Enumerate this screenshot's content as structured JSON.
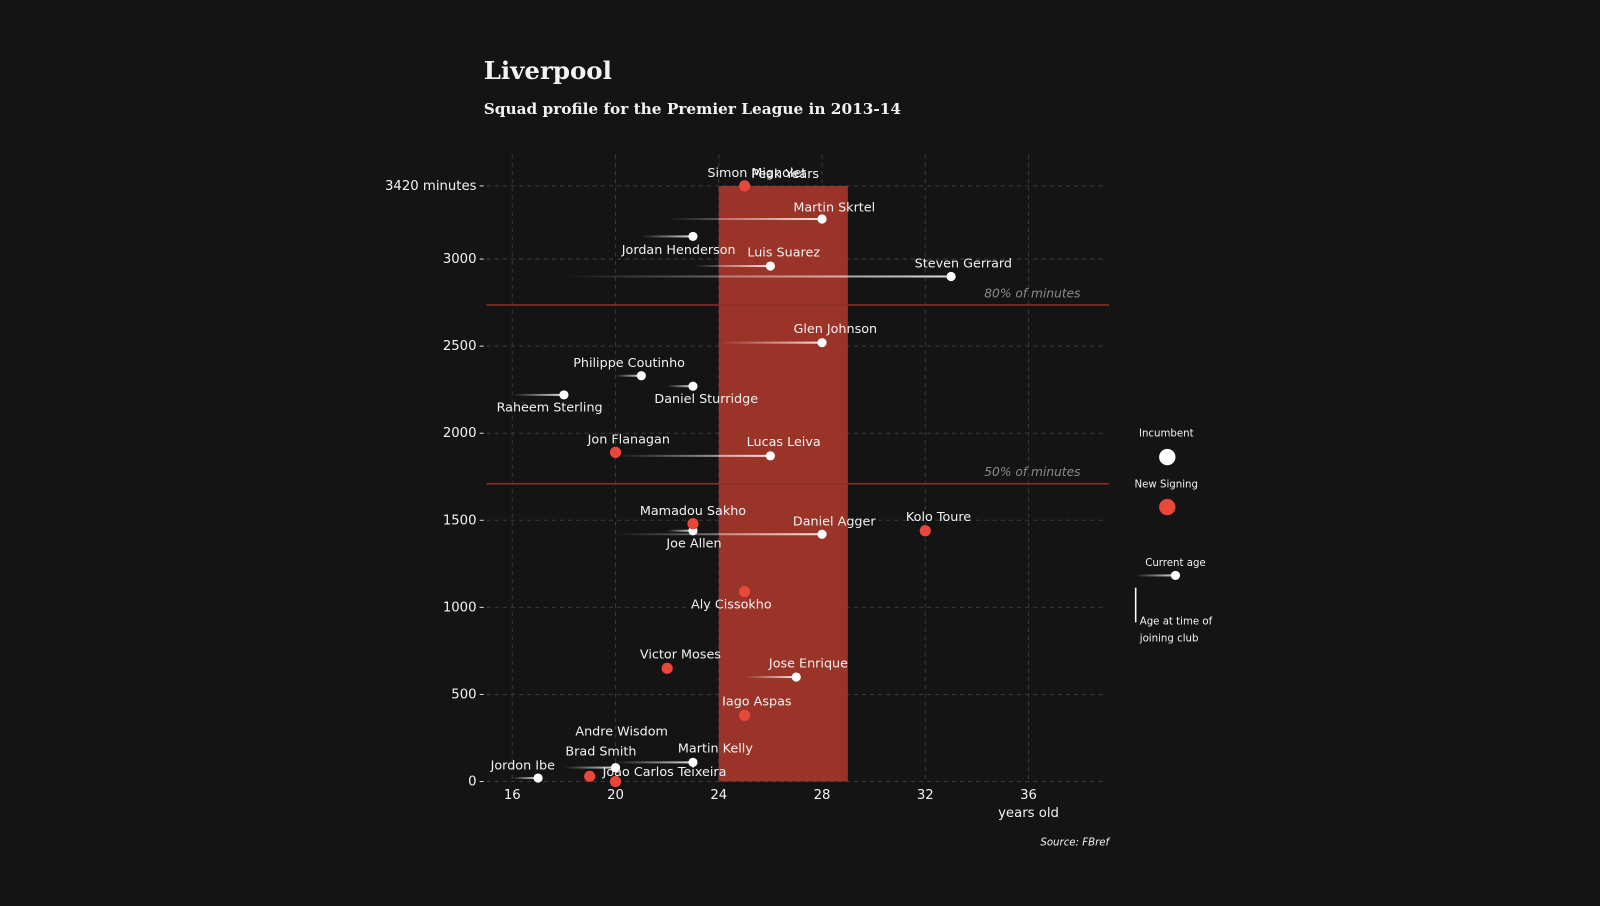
{
  "chart_data": {
    "type": "scatter",
    "title": "Liverpool",
    "subtitle": "Squad profile for the Premier League in 2013-14",
    "x_label": "years old",
    "source": "Source: FBref",
    "xlim": [
      15,
      39
    ],
    "ylim": [
      0,
      3600
    ],
    "xticks": [
      16,
      20,
      24,
      28,
      32,
      36
    ],
    "yticks": [
      0,
      500,
      1000,
      1500,
      2000,
      2500,
      3000,
      {
        "value": 3420,
        "label": "3420 minutes"
      }
    ],
    "grid": true,
    "band": {
      "label": "Peak Years",
      "x": [
        24,
        29
      ],
      "top": 3420,
      "color": "#a8362a"
    },
    "reference_lines": [
      {
        "value": 2736,
        "label": "80% of minutes",
        "color": "#8e2f25"
      },
      {
        "value": 1710,
        "label": "50% of minutes",
        "color": "#8e2f25"
      }
    ],
    "series": [
      {
        "name": "Incumbent",
        "color": "#ffffff",
        "labels": [
          "Martin Skrtel",
          "Jordan Henderson",
          "Luis Suarez",
          "Steven Gerrard",
          "Glen Johnson",
          "Philippe Coutinho",
          "Daniel Sturridge",
          "Raheem Sterling",
          "Lucas Leiva",
          "Joe Allen",
          "Daniel Agger",
          "Jose Enrique",
          "Andre Wisdom",
          "Martin Kelly",
          "Jordon Ibe"
        ],
        "x": [
          28,
          23,
          26,
          33,
          28,
          21,
          23,
          18,
          26,
          23,
          28,
          27,
          20,
          23,
          17
        ],
        "joined": [
          22,
          21,
          23,
          18,
          24,
          20,
          22,
          16,
          20,
          22,
          20,
          25,
          18,
          20,
          16
        ],
        "values": [
          3230,
          3130,
          2960,
          2900,
          2520,
          2330,
          2270,
          2220,
          1870,
          1440,
          1420,
          600,
          80,
          110,
          20
        ]
      },
      {
        "name": "New Signing",
        "color": "#e8473a",
        "labels": [
          "Simon Mignolet",
          "Jon Flanagan",
          "Mamadou Sakho",
          "Kolo Toure",
          "Aly Cissokho",
          "Victor Moses",
          "Iago Aspas",
          "Brad Smith",
          "Joao Carlos Teixeira"
        ],
        "x": [
          25,
          20,
          23,
          32,
          25,
          22,
          25,
          19,
          20
        ],
        "values": [
          3420,
          1890,
          1480,
          1440,
          1090,
          650,
          380,
          30,
          0
        ]
      }
    ],
    "legend_extra": {
      "current_age": "Current age",
      "joined_age": [
        "Age at time of",
        "joining club"
      ]
    }
  }
}
